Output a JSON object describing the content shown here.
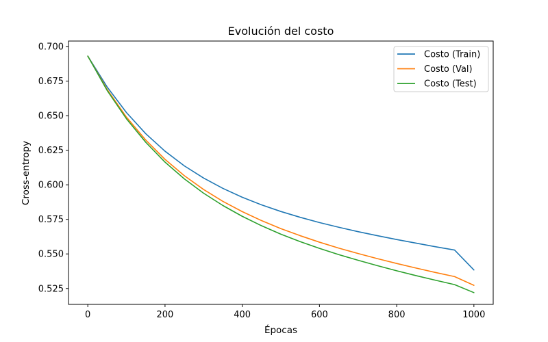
{
  "chart_data": {
    "type": "line",
    "title": "Evolución del costo",
    "xlabel": "Épocas",
    "ylabel": "Cross-entropy",
    "xlim": [
      -50,
      1050
    ],
    "ylim": [
      0.5135,
      0.704
    ],
    "xticks": [
      0,
      200,
      400,
      600,
      800,
      1000
    ],
    "xtick_labels": [
      "0",
      "200",
      "400",
      "600",
      "800",
      "1000"
    ],
    "yticks": [
      0.525,
      0.55,
      0.575,
      0.6,
      0.625,
      0.65,
      0.675,
      0.7
    ],
    "ytick_labels": [
      "0.525",
      "0.550",
      "0.575",
      "0.600",
      "0.625",
      "0.650",
      "0.675",
      "0.700"
    ],
    "grid": false,
    "legend_position": "top-right",
    "x": [
      0,
      50,
      100,
      150,
      200,
      250,
      300,
      350,
      400,
      450,
      500,
      550,
      600,
      650,
      700,
      750,
      800,
      850,
      900,
      950,
      1000
    ],
    "series": [
      {
        "name": "Costo (Train)",
        "color": "#1f77b4",
        "values": [
          0.6931,
          0.6708,
          0.6523,
          0.637,
          0.6243,
          0.6137,
          0.6049,
          0.5974,
          0.591,
          0.5855,
          0.5807,
          0.5765,
          0.5727,
          0.5693,
          0.5661,
          0.5632,
          0.5604,
          0.5578,
          0.5552,
          0.5528,
          0.5384
        ]
      },
      {
        "name": "Costo (Val)",
        "color": "#ff7f0e",
        "values": [
          0.6931,
          0.669,
          0.649,
          0.6324,
          0.6184,
          0.6066,
          0.5966,
          0.588,
          0.5806,
          0.5741,
          0.5683,
          0.5632,
          0.5585,
          0.5542,
          0.5503,
          0.5466,
          0.5431,
          0.5398,
          0.5366,
          0.5336,
          0.5273
        ]
      },
      {
        "name": "Costo (Test)",
        "color": "#2ca02c",
        "values": [
          0.6931,
          0.6683,
          0.6478,
          0.6308,
          0.6164,
          0.6043,
          0.5939,
          0.585,
          0.5772,
          0.5704,
          0.5643,
          0.5589,
          0.554,
          0.5495,
          0.5454,
          0.5415,
          0.5378,
          0.5343,
          0.531,
          0.5278,
          0.522
        ]
      }
    ]
  }
}
